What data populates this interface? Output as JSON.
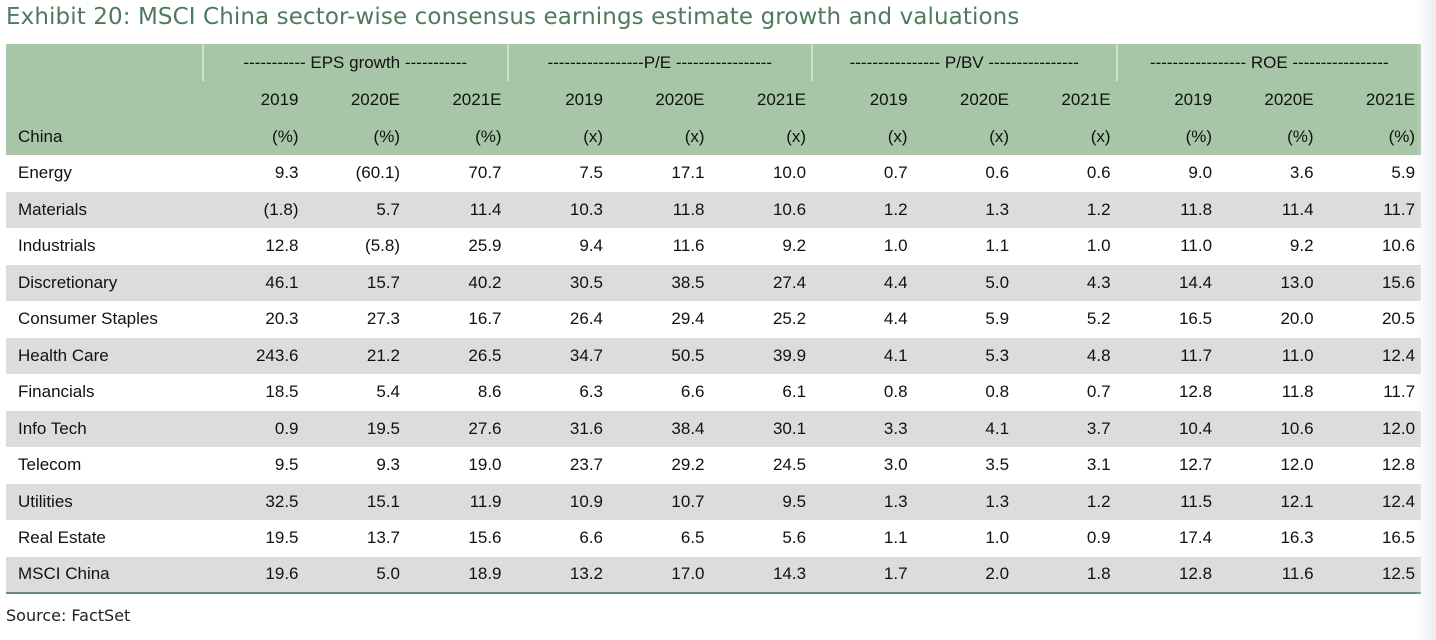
{
  "title": "Exhibit 20: MSCI China sector-wise consensus earnings estimate growth and valuations",
  "groups": [
    "----------- EPS growth -----------",
    "-----------------P/E -----------------",
    "---------------- P/BV ----------------",
    "----------------- ROE -----------------"
  ],
  "years": [
    "2019",
    "2020E",
    "2021E",
    "2019",
    "2020E",
    "2021E",
    "2019",
    "2020E",
    "2021E",
    "2019",
    "2020E",
    "2021E"
  ],
  "row_header": "China",
  "units": [
    "(%)",
    "(%)",
    "(%)",
    "(x)",
    "(x)",
    "(x)",
    "(x)",
    "(x)",
    "(x)",
    "(%)",
    "(%)",
    "(%)"
  ],
  "rows": [
    {
      "name": "Energy",
      "values": [
        "9.3",
        "(60.1)",
        "70.7",
        "7.5",
        "17.1",
        "10.0",
        "0.7",
        "0.6",
        "0.6",
        "9.0",
        "3.6",
        "5.9"
      ]
    },
    {
      "name": "Materials",
      "values": [
        "(1.8)",
        "5.7",
        "11.4",
        "10.3",
        "11.8",
        "10.6",
        "1.2",
        "1.3",
        "1.2",
        "11.8",
        "11.4",
        "11.7"
      ]
    },
    {
      "name": "Industrials",
      "values": [
        "12.8",
        "(5.8)",
        "25.9",
        "9.4",
        "11.6",
        "9.2",
        "1.0",
        "1.1",
        "1.0",
        "11.0",
        "9.2",
        "10.6"
      ]
    },
    {
      "name": "Discretionary",
      "values": [
        "46.1",
        "15.7",
        "40.2",
        "30.5",
        "38.5",
        "27.4",
        "4.4",
        "5.0",
        "4.3",
        "14.4",
        "13.0",
        "15.6"
      ]
    },
    {
      "name": "Consumer Staples",
      "values": [
        "20.3",
        "27.3",
        "16.7",
        "26.4",
        "29.4",
        "25.2",
        "4.4",
        "5.9",
        "5.2",
        "16.5",
        "20.0",
        "20.5"
      ]
    },
    {
      "name": "Health Care",
      "values": [
        "243.6",
        "21.2",
        "26.5",
        "34.7",
        "50.5",
        "39.9",
        "4.1",
        "5.3",
        "4.8",
        "11.7",
        "11.0",
        "12.4"
      ]
    },
    {
      "name": "Financials",
      "values": [
        "18.5",
        "5.4",
        "8.6",
        "6.3",
        "6.6",
        "6.1",
        "0.8",
        "0.8",
        "0.7",
        "12.8",
        "11.8",
        "11.7"
      ]
    },
    {
      "name": "Info Tech",
      "values": [
        "0.9",
        "19.5",
        "27.6",
        "31.6",
        "38.4",
        "30.1",
        "3.3",
        "4.1",
        "3.7",
        "10.4",
        "10.6",
        "12.0"
      ]
    },
    {
      "name": "Telecom",
      "values": [
        "9.5",
        "9.3",
        "19.0",
        "23.7",
        "29.2",
        "24.5",
        "3.0",
        "3.5",
        "3.1",
        "12.7",
        "12.0",
        "12.8"
      ]
    },
    {
      "name": "Utilities",
      "values": [
        "32.5",
        "15.1",
        "11.9",
        "10.9",
        "10.7",
        "9.5",
        "1.3",
        "1.3",
        "1.2",
        "11.5",
        "12.1",
        "12.4"
      ]
    },
    {
      "name": "Real Estate",
      "values": [
        "19.5",
        "13.7",
        "15.6",
        "6.6",
        "6.5",
        "5.6",
        "1.1",
        "1.0",
        "0.9",
        "17.4",
        "16.3",
        "16.5"
      ]
    },
    {
      "name": "MSCI China",
      "values": [
        "19.6",
        "5.0",
        "18.9",
        "13.2",
        "17.0",
        "14.3",
        "1.7",
        "2.0",
        "1.8",
        "12.8",
        "11.6",
        "12.5"
      ]
    }
  ],
  "source": "Source: FactSet",
  "colors": {
    "title": "#4f7b5d",
    "header_bg": "#a7c6a7",
    "band": "#dcdcdc"
  }
}
